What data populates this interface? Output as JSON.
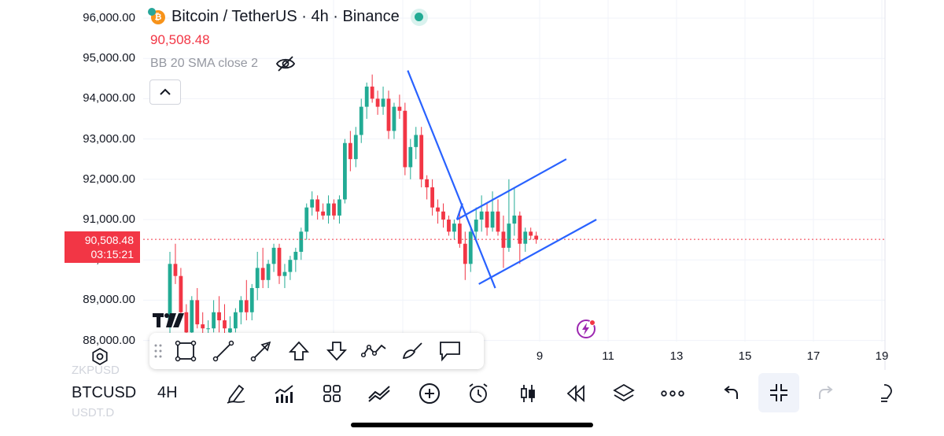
{
  "header": {
    "symbol_title": "Bitcoin / TetherUS · 4h · Binance",
    "coin_icon": "bitcoin-logo-icon",
    "status": "market-open-dot",
    "last_price": "90,508.48",
    "indicator": "BB 20 SMA close 2",
    "indicator_visibility_icon": "eye-off-icon"
  },
  "price_tag": {
    "price": "90,508.48",
    "countdown": "03:15:21"
  },
  "colors": {
    "up": "#22ab94",
    "down": "#f23645",
    "drawing": "#2962ff",
    "price_line": "#f23645"
  },
  "chart_data": {
    "type": "candlestick",
    "symbol": "BTCUSDT",
    "interval": "4h",
    "y_ticks": [
      "96,000.00",
      "95,000.00",
      "94,000.00",
      "93,000.00",
      "92,000.00",
      "91,000.00",
      "90,000.00",
      "89,000.00",
      "88,000.00"
    ],
    "y_range": [
      87950,
      96300
    ],
    "x_ticks": [
      "9",
      "11",
      "13",
      "15",
      "17",
      "19"
    ],
    "current_price": 90508.48,
    "candles": [
      {
        "o": 88400,
        "h": 90200,
        "l": 88000,
        "c": 89900
      },
      {
        "o": 89900,
        "h": 90400,
        "l": 89400,
        "c": 89600
      },
      {
        "o": 89600,
        "h": 89800,
        "l": 88500,
        "c": 88700
      },
      {
        "o": 88700,
        "h": 88900,
        "l": 88000,
        "c": 88200
      },
      {
        "o": 88200,
        "h": 89100,
        "l": 88000,
        "c": 89000
      },
      {
        "o": 89000,
        "h": 89300,
        "l": 88300,
        "c": 88400
      },
      {
        "o": 88400,
        "h": 88700,
        "l": 88100,
        "c": 88300
      },
      {
        "o": 88300,
        "h": 88500,
        "l": 88000,
        "c": 88300
      },
      {
        "o": 88300,
        "h": 89000,
        "l": 88200,
        "c": 88700
      },
      {
        "o": 88700,
        "h": 89100,
        "l": 88200,
        "c": 88500
      },
      {
        "o": 88500,
        "h": 88900,
        "l": 88100,
        "c": 88300
      },
      {
        "o": 88200,
        "h": 88600,
        "l": 88000,
        "c": 88300
      },
      {
        "o": 88300,
        "h": 88800,
        "l": 88200,
        "c": 88700
      },
      {
        "o": 88700,
        "h": 89100,
        "l": 88400,
        "c": 89000
      },
      {
        "o": 89000,
        "h": 89500,
        "l": 88500,
        "c": 88700
      },
      {
        "o": 88700,
        "h": 89400,
        "l": 88500,
        "c": 89300
      },
      {
        "o": 89300,
        "h": 90200,
        "l": 89000,
        "c": 89800
      },
      {
        "o": 89800,
        "h": 90300,
        "l": 89300,
        "c": 89500
      },
      {
        "o": 89500,
        "h": 90000,
        "l": 89300,
        "c": 89900
      },
      {
        "o": 89900,
        "h": 90400,
        "l": 89700,
        "c": 90300
      },
      {
        "o": 90300,
        "h": 90400,
        "l": 89400,
        "c": 89600
      },
      {
        "o": 89600,
        "h": 89900,
        "l": 89300,
        "c": 89700
      },
      {
        "o": 89700,
        "h": 90100,
        "l": 89500,
        "c": 90000
      },
      {
        "o": 90000,
        "h": 90300,
        "l": 89700,
        "c": 90200
      },
      {
        "o": 90200,
        "h": 90800,
        "l": 90000,
        "c": 90700
      },
      {
        "o": 90700,
        "h": 91400,
        "l": 90500,
        "c": 91300
      },
      {
        "o": 91300,
        "h": 91700,
        "l": 91100,
        "c": 91500
      },
      {
        "o": 91500,
        "h": 91600,
        "l": 91000,
        "c": 91200
      },
      {
        "o": 91200,
        "h": 91400,
        "l": 91000,
        "c": 91100
      },
      {
        "o": 91100,
        "h": 91600,
        "l": 90900,
        "c": 91400
      },
      {
        "o": 91400,
        "h": 91500,
        "l": 91000,
        "c": 91100
      },
      {
        "o": 91100,
        "h": 91600,
        "l": 90900,
        "c": 91500
      },
      {
        "o": 91500,
        "h": 93000,
        "l": 91400,
        "c": 92900
      },
      {
        "o": 92900,
        "h": 93200,
        "l": 92200,
        "c": 92500
      },
      {
        "o": 92500,
        "h": 93300,
        "l": 92300,
        "c": 93100
      },
      {
        "o": 93100,
        "h": 94000,
        "l": 92900,
        "c": 93800
      },
      {
        "o": 93800,
        "h": 94400,
        "l": 93500,
        "c": 94300
      },
      {
        "o": 94300,
        "h": 94600,
        "l": 93900,
        "c": 94000
      },
      {
        "o": 94000,
        "h": 94200,
        "l": 93600,
        "c": 93800
      },
      {
        "o": 93800,
        "h": 94300,
        "l": 93600,
        "c": 94000
      },
      {
        "o": 94000,
        "h": 94200,
        "l": 93000,
        "c": 93200
      },
      {
        "o": 93200,
        "h": 93900,
        "l": 93000,
        "c": 93800
      },
      {
        "o": 93800,
        "h": 94100,
        "l": 93500,
        "c": 93700
      },
      {
        "o": 93700,
        "h": 93900,
        "l": 92100,
        "c": 92300
      },
      {
        "o": 92300,
        "h": 93000,
        "l": 92000,
        "c": 92800
      },
      {
        "o": 92800,
        "h": 93300,
        "l": 92500,
        "c": 93100
      },
      {
        "o": 93100,
        "h": 93300,
        "l": 91800,
        "c": 92000
      },
      {
        "o": 92000,
        "h": 92100,
        "l": 91500,
        "c": 91800
      },
      {
        "o": 91800,
        "h": 92000,
        "l": 91100,
        "c": 91300
      },
      {
        "o": 91300,
        "h": 91500,
        "l": 90900,
        "c": 91200
      },
      {
        "o": 91200,
        "h": 91400,
        "l": 90800,
        "c": 91000
      },
      {
        "o": 91000,
        "h": 91100,
        "l": 90600,
        "c": 90700
      },
      {
        "o": 90700,
        "h": 91000,
        "l": 90500,
        "c": 90900
      },
      {
        "o": 90900,
        "h": 91200,
        "l": 90300,
        "c": 90400
      },
      {
        "o": 90400,
        "h": 90700,
        "l": 89500,
        "c": 89900
      },
      {
        "o": 89900,
        "h": 90800,
        "l": 89700,
        "c": 90700
      },
      {
        "o": 90700,
        "h": 91300,
        "l": 90500,
        "c": 91000
      },
      {
        "o": 91000,
        "h": 91600,
        "l": 90700,
        "c": 91200
      },
      {
        "o": 91200,
        "h": 91400,
        "l": 90600,
        "c": 90800
      },
      {
        "o": 90800,
        "h": 91700,
        "l": 90700,
        "c": 91200
      },
      {
        "o": 91200,
        "h": 91500,
        "l": 90600,
        "c": 90700
      },
      {
        "o": 90700,
        "h": 91100,
        "l": 89800,
        "c": 90300
      },
      {
        "o": 90300,
        "h": 92000,
        "l": 90200,
        "c": 90900
      },
      {
        "o": 90900,
        "h": 91800,
        "l": 90600,
        "c": 91100
      },
      {
        "o": 91100,
        "h": 91200,
        "l": 89900,
        "c": 90400
      },
      {
        "o": 90400,
        "h": 90800,
        "l": 90200,
        "c": 90700
      },
      {
        "o": 90700,
        "h": 90800,
        "l": 90500,
        "c": 90600
      },
      {
        "o": 90600,
        "h": 90700,
        "l": 90400,
        "c": 90508
      }
    ],
    "drawings": [
      {
        "type": "trend-line",
        "from": {
          "i": 43.5,
          "p": 94700
        },
        "to": {
          "i": 59.5,
          "p": 89300
        }
      },
      {
        "type": "trend-line",
        "from": {
          "i": 56.5,
          "p": 89400
        },
        "to": {
          "i": 78,
          "p": 91000
        }
      },
      {
        "type": "trend-line",
        "from": {
          "i": 52.5,
          "p": 91000
        },
        "to": {
          "i": 72.5,
          "p": 92500
        }
      },
      {
        "type": "trend-line",
        "from": {
          "i": 52.5,
          "p": 91000
        },
        "to": {
          "i": 53.5,
          "p": 91400
        }
      }
    ]
  },
  "drawing_toolbar": {
    "tools": [
      "grip-icon",
      "rectangle-icon",
      "trend-line-icon",
      "arrow-icon",
      "arrow-mark-up-icon",
      "arrow-mark-down-icon",
      "path-icon",
      "brush-icon",
      "callout-icon"
    ]
  },
  "bottom_bar": {
    "symbol": "BTCUSD",
    "symbol_above": "ZKPUSD",
    "symbol_below": "USDT.D",
    "interval": "4H",
    "icons": [
      "draw-icon",
      "indicators-icon",
      "templates-icon",
      "compare-icon",
      "add-icon",
      "alert-icon",
      "chart-type-icon",
      "replay-icon",
      "layers-icon",
      "more-icon",
      "undo-icon",
      "exit-fullscreen-icon",
      "redo-icon",
      "ideas-icon"
    ]
  },
  "settings_icon": "settings-icon",
  "tv_logo": "TradingView",
  "lightning_icon": "lightning-icon"
}
